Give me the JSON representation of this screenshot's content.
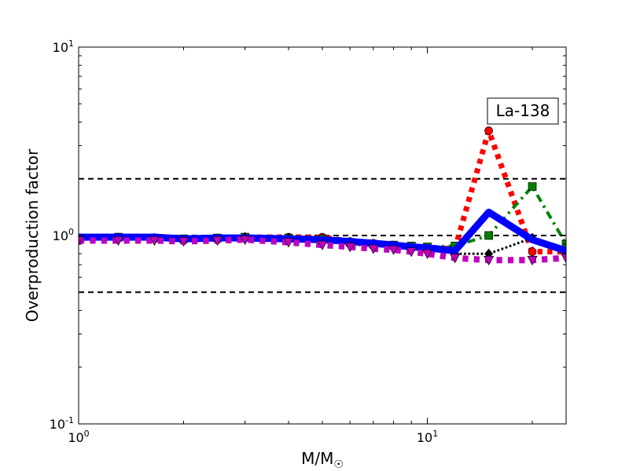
{
  "chart_data": {
    "type": "line",
    "annotation": "La-138",
    "xlabel_main": "M/M",
    "xlabel_sub": "☉",
    "ylabel": "Overproduction factor",
    "xscale": "log",
    "yscale": "log",
    "xlim": [
      1,
      25
    ],
    "ylim": [
      0.1,
      10
    ],
    "x_ticks": [
      {
        "value": 1,
        "base": "10",
        "exp": "0"
      },
      {
        "value": 10,
        "base": "10",
        "exp": "1"
      }
    ],
    "y_ticks": [
      {
        "value": 0.1,
        "base": "10",
        "exp": "-1"
      },
      {
        "value": 1,
        "base": "10",
        "exp": "0"
      },
      {
        "value": 10,
        "base": "10",
        "exp": "1"
      }
    ],
    "reference_lines": [
      2.0,
      1.0,
      0.5
    ],
    "series": [
      {
        "color": "#ff0000",
        "style": "dotted",
        "width": 7,
        "marker": "circle",
        "x": [
          1,
          1.3,
          1.65,
          2,
          2.5,
          3,
          4,
          5,
          6,
          7,
          8,
          9,
          10,
          12,
          15,
          20,
          25
        ],
        "y": [
          0.97,
          0.98,
          0.97,
          0.96,
          0.97,
          0.98,
          0.98,
          0.98,
          0.93,
          0.91,
          0.89,
          0.87,
          0.86,
          0.85,
          3.6,
          0.82,
          0.82
        ]
      },
      {
        "color": "#008000",
        "style": "dashdot",
        "width": 4,
        "marker": "square",
        "x": [
          1,
          1.3,
          1.65,
          2,
          2.5,
          3,
          4,
          5,
          6,
          7,
          8,
          9,
          10,
          12,
          15,
          20,
          25
        ],
        "y": [
          0.97,
          0.98,
          0.97,
          0.96,
          0.97,
          0.98,
          0.97,
          0.96,
          0.92,
          0.9,
          0.89,
          0.88,
          0.87,
          0.88,
          1.0,
          1.82,
          0.9
        ]
      },
      {
        "color": "#000000",
        "style": "dotted",
        "width": 3,
        "marker": "diamond",
        "x": [
          1,
          1.3,
          1.65,
          2,
          2.5,
          3,
          4,
          5,
          6,
          7,
          8,
          9,
          10,
          12,
          15,
          20,
          25
        ],
        "y": [
          0.96,
          0.97,
          0.97,
          0.94,
          0.96,
          0.98,
          0.96,
          0.93,
          0.9,
          0.88,
          0.87,
          0.86,
          0.85,
          0.8,
          0.8,
          0.97,
          0.82
        ]
      },
      {
        "color": "#0000ff",
        "style": "solid",
        "width": 9,
        "marker": "none",
        "x": [
          1,
          1.3,
          1.65,
          2,
          2.5,
          3,
          4,
          5,
          6,
          7,
          8,
          9,
          10,
          12,
          15,
          20,
          25
        ],
        "y": [
          0.98,
          0.98,
          0.98,
          0.96,
          0.97,
          0.97,
          0.96,
          0.95,
          0.93,
          0.91,
          0.89,
          0.87,
          0.86,
          0.83,
          1.33,
          0.95,
          0.83
        ]
      },
      {
        "color": "#bf00bf",
        "style": "dotted",
        "width": 8,
        "marker": "triangle-down",
        "x": [
          1,
          1.3,
          1.65,
          2,
          2.5,
          3,
          4,
          5,
          6,
          7,
          8,
          9,
          10,
          12,
          15,
          20,
          25
        ],
        "y": [
          0.94,
          0.94,
          0.94,
          0.93,
          0.94,
          0.95,
          0.92,
          0.89,
          0.87,
          0.85,
          0.84,
          0.82,
          0.8,
          0.76,
          0.74,
          0.74,
          0.76
        ]
      }
    ]
  }
}
